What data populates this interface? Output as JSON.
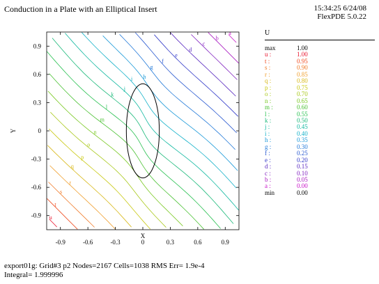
{
  "header": {
    "title": "Conduction in a Plate with an Elliptical Insert",
    "time": "15:34:25 6/24/08",
    "software": "FlexPDE 5.0.22"
  },
  "footer": {
    "line1": "export01g:  Grid#3  p2  Nodes=2167 Cells=1038 RMS Err= 1.9e-4",
    "line2": "Integral=  1.999996"
  },
  "legend": {
    "title": "U",
    "rows": [
      {
        "key": "max",
        "value": "1.00",
        "color": "#000000"
      },
      {
        "key": "u :",
        "value": "1.00",
        "color": "#e8102a"
      },
      {
        "key": "t :",
        "value": "0.95",
        "color": "#ef4a1e"
      },
      {
        "key": "s :",
        "value": "0.90",
        "color": "#f07a28"
      },
      {
        "key": "r :",
        "value": "0.85",
        "color": "#f0a030"
      },
      {
        "key": "q :",
        "value": "0.80",
        "color": "#d8b818"
      },
      {
        "key": "p :",
        "value": "0.75",
        "color": "#c8c810"
      },
      {
        "key": "o :",
        "value": "0.70",
        "color": "#a8c818"
      },
      {
        "key": "n :",
        "value": "0.65",
        "color": "#78c820"
      },
      {
        "key": "m :",
        "value": "0.60",
        "color": "#48c030"
      },
      {
        "key": "l :",
        "value": "0.55",
        "color": "#28c050"
      },
      {
        "key": "k :",
        "value": "0.50",
        "color": "#18b878"
      },
      {
        "key": "j :",
        "value": "0.45",
        "color": "#10b8a0"
      },
      {
        "key": "i :",
        "value": "0.40",
        "color": "#10b0c8"
      },
      {
        "key": "h :",
        "value": "0.35",
        "color": "#1898d8"
      },
      {
        "key": "g :",
        "value": "0.30",
        "color": "#2078d8"
      },
      {
        "key": "f :",
        "value": "0.25",
        "color": "#2858d0"
      },
      {
        "key": "e :",
        "value": "0.20",
        "color": "#3038c8"
      },
      {
        "key": "d :",
        "value": "0.15",
        "color": "#5828c0"
      },
      {
        "key": "c :",
        "value": "0.10",
        "color": "#8020c0"
      },
      {
        "key": "b :",
        "value": "0.05",
        "color": "#a818c0"
      },
      {
        "key": "a :",
        "value": "0.00",
        "color": "#c810c8"
      },
      {
        "key": "min",
        "value": "0.00",
        "color": "#000000"
      }
    ]
  },
  "chart_data": {
    "type": "contour",
    "variable": "U",
    "xlabel": "X",
    "ylabel": "Y",
    "xlim": [
      -1.05,
      1.05
    ],
    "ylim": [
      -1.05,
      1.05
    ],
    "xticks": [
      -0.9,
      -0.6,
      -0.3,
      0,
      0.3,
      0.6,
      0.9
    ],
    "xtick_labels": [
      "-0.9",
      "-0.6",
      "-0.3",
      "0",
      "0.3",
      "0.6",
      "0.9"
    ],
    "yticks": [
      -0.9,
      -0.6,
      -0.3,
      0,
      0.3,
      0.6,
      0.9
    ],
    "ytick_labels": [
      "-0.9",
      "-0.6",
      "-0.3",
      "0",
      "0.3",
      "0.6",
      "0.9"
    ],
    "insert": {
      "shape": "ellipse",
      "center": [
        0,
        0
      ],
      "semi_x": 0.18,
      "semi_y": 0.5
    },
    "levels": [
      1.0,
      0.95,
      0.9,
      0.85,
      0.8,
      0.75,
      0.7,
      0.65,
      0.6,
      0.55,
      0.5,
      0.45,
      0.4,
      0.35,
      0.3,
      0.25,
      0.2,
      0.15,
      0.1,
      0.05,
      0.0
    ],
    "level_labels": [
      "u",
      "t",
      "s",
      "r",
      "q",
      "p",
      "o",
      "n",
      "m",
      "l",
      "k",
      "j",
      "i",
      "h",
      "g",
      "f",
      "e",
      "d",
      "c",
      "b",
      "a"
    ]
  }
}
